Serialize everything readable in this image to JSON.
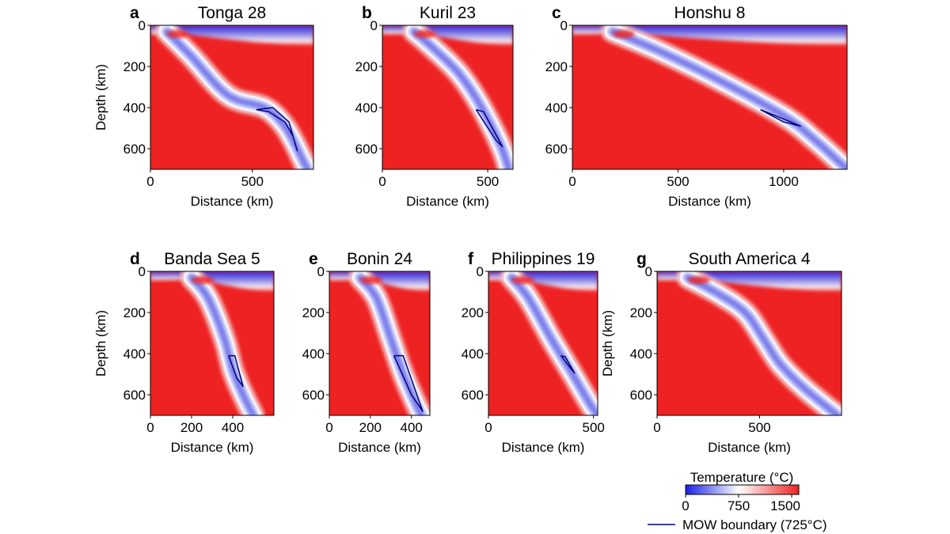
{
  "chart_data": [
    {
      "panel": "a",
      "type": "heatmap",
      "title": "Tonga 28",
      "xlabel": "Distance (km)",
      "ylabel": "Depth (km)",
      "xlim": [
        0,
        800
      ],
      "ylim": [
        700,
        0
      ],
      "xticks": [
        "0",
        "500"
      ],
      "xtick_values": [
        0,
        500
      ],
      "yticks": [
        "0",
        "200",
        "400",
        "600"
      ],
      "ytick_values": [
        0,
        200,
        400,
        600
      ],
      "trench_km": 80,
      "slab_path_km": [
        [
          80,
          30
        ],
        [
          200,
          150
        ],
        [
          380,
          340
        ],
        [
          560,
          400
        ],
        [
          650,
          480
        ],
        [
          700,
          560
        ],
        [
          740,
          640
        ],
        [
          770,
          700
        ]
      ],
      "mow_boundary_km": [
        [
          520,
          410
        ],
        [
          600,
          400
        ],
        [
          680,
          470
        ],
        [
          720,
          610
        ],
        [
          700,
          540
        ],
        [
          660,
          470
        ],
        [
          580,
          420
        ],
        [
          520,
          410
        ]
      ]
    },
    {
      "panel": "b",
      "type": "heatmap",
      "title": "Kuril 23",
      "xlabel": "Distance (km)",
      "ylabel": "",
      "xlim": [
        0,
        620
      ],
      "ylim": [
        700,
        0
      ],
      "xticks": [
        "0",
        "500"
      ],
      "xtick_values": [
        0,
        500
      ],
      "yticks": [
        "0",
        "200",
        "400",
        "600"
      ],
      "ytick_values": [
        0,
        200,
        400,
        600
      ],
      "trench_km": 150,
      "slab_path_km": [
        [
          150,
          30
        ],
        [
          240,
          110
        ],
        [
          360,
          230
        ],
        [
          460,
          380
        ],
        [
          560,
          580
        ],
        [
          600,
          700
        ]
      ],
      "mow_boundary_km": [
        [
          445,
          410
        ],
        [
          480,
          420
        ],
        [
          570,
          590
        ],
        [
          540,
          560
        ],
        [
          445,
          410
        ]
      ]
    },
    {
      "panel": "c",
      "type": "heatmap",
      "title": "Honshu 8",
      "xlabel": "Distance (km)",
      "ylabel": "",
      "xlim": [
        0,
        1300
      ],
      "ylim": [
        700,
        0
      ],
      "xticks": [
        "0",
        "500",
        "1000"
      ],
      "xtick_values": [
        0,
        500,
        1000
      ],
      "yticks": [
        "0",
        "200",
        "400",
        "600"
      ],
      "ytick_values": [
        0,
        200,
        400,
        600
      ],
      "trench_km": 190,
      "slab_path_km": [
        [
          190,
          30
        ],
        [
          400,
          120
        ],
        [
          700,
          270
        ],
        [
          1000,
          440
        ],
        [
          1150,
          560
        ],
        [
          1300,
          700
        ]
      ],
      "mow_boundary_km": [
        [
          890,
          410
        ],
        [
          1010,
          460
        ],
        [
          1080,
          490
        ],
        [
          1000,
          470
        ],
        [
          890,
          410
        ]
      ]
    },
    {
      "panel": "d",
      "type": "heatmap",
      "title": "Banda Sea 5",
      "xlabel": "Distance (km)",
      "ylabel": "Depth (km)",
      "xlim": [
        0,
        600
      ],
      "ylim": [
        700,
        0
      ],
      "xticks": [
        "0",
        "200",
        "400"
      ],
      "xtick_values": [
        0,
        200,
        400
      ],
      "yticks": [
        "0",
        "200",
        "400",
        "600"
      ],
      "ytick_values": [
        0,
        200,
        400,
        600
      ],
      "trench_km": 200,
      "slab_path_km": [
        [
          200,
          30
        ],
        [
          280,
          130
        ],
        [
          360,
          330
        ],
        [
          400,
          480
        ],
        [
          450,
          600
        ],
        [
          500,
          700
        ]
      ],
      "mow_boundary_km": [
        [
          380,
          410
        ],
        [
          410,
          410
        ],
        [
          450,
          560
        ],
        [
          420,
          520
        ],
        [
          380,
          410
        ]
      ]
    },
    {
      "panel": "e",
      "type": "heatmap",
      "title": "Bonin 24",
      "xlabel": "Distance (km)",
      "ylabel": "",
      "xlim": [
        0,
        490
      ],
      "ylim": [
        700,
        0
      ],
      "xticks": [
        "0",
        "200",
        "400"
      ],
      "xtick_values": [
        0,
        200,
        400
      ],
      "yticks": [
        "0",
        "200",
        "400",
        "600"
      ],
      "ytick_values": [
        0,
        200,
        400,
        600
      ],
      "trench_km": 150,
      "slab_path_km": [
        [
          150,
          30
        ],
        [
          230,
          130
        ],
        [
          300,
          330
        ],
        [
          360,
          500
        ],
        [
          420,
          640
        ],
        [
          450,
          700
        ]
      ],
      "mow_boundary_km": [
        [
          315,
          410
        ],
        [
          360,
          410
        ],
        [
          455,
          680
        ],
        [
          400,
          600
        ],
        [
          315,
          410
        ]
      ]
    },
    {
      "panel": "f",
      "type": "heatmap",
      "title": "Philippines 19",
      "xlabel": "Distance (km)",
      "ylabel": "",
      "xlim": [
        0,
        520
      ],
      "ylim": [
        700,
        0
      ],
      "xticks": [
        "0",
        "500"
      ],
      "xtick_values": [
        0,
        500
      ],
      "yticks": [
        "0",
        "200",
        "400",
        "600"
      ],
      "ytick_values": [
        0,
        200,
        400,
        600
      ],
      "trench_km": 110,
      "slab_path_km": [
        [
          110,
          30
        ],
        [
          190,
          130
        ],
        [
          300,
          330
        ],
        [
          400,
          500
        ],
        [
          480,
          640
        ],
        [
          520,
          700
        ]
      ],
      "mow_boundary_km": [
        [
          345,
          410
        ],
        [
          365,
          415
        ],
        [
          410,
          495
        ],
        [
          390,
          470
        ],
        [
          345,
          410
        ]
      ]
    },
    {
      "panel": "g",
      "type": "heatmap",
      "title": "South America 4",
      "xlabel": "Distance (km)",
      "ylabel": "Depth (km)",
      "xlim": [
        0,
        900
      ],
      "ylim": [
        700,
        0
      ],
      "xticks": [
        "0",
        "500"
      ],
      "xtick_values": [
        0,
        500
      ],
      "yticks": [
        "0",
        "200",
        "400",
        "600"
      ],
      "ytick_values": [
        0,
        200,
        400,
        600
      ],
      "trench_km": 150,
      "slab_path_km": [
        [
          150,
          30
        ],
        [
          300,
          110
        ],
        [
          430,
          200
        ],
        [
          520,
          330
        ],
        [
          600,
          450
        ],
        [
          720,
          570
        ],
        [
          880,
          700
        ]
      ],
      "mow_boundary_km": []
    }
  ],
  "colorbar": {
    "label": "Temperature (°C)",
    "ticks": [
      "0",
      "750",
      "1500"
    ],
    "tick_values": [
      0,
      750,
      1500
    ],
    "range": [
      0,
      1600
    ],
    "colors": {
      "cold": "#1a1fe6",
      "mid": "#ffffff",
      "hot": "#ee2222"
    }
  },
  "legend": {
    "line_label": "MOW boundary (725°C)",
    "line_color": "#000080"
  }
}
